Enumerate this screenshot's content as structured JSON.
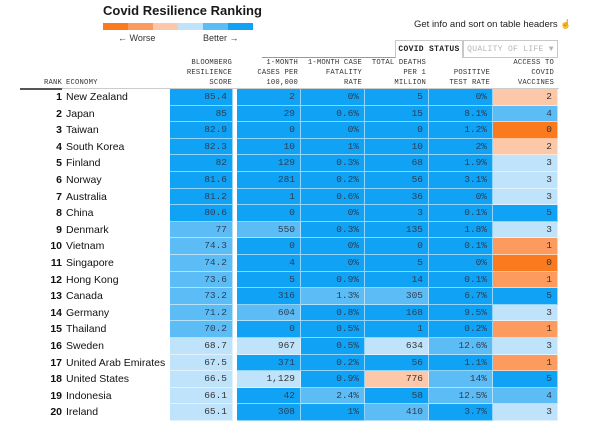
{
  "header": {
    "title": "Covid Resilience Ranking",
    "legend_worse": "← Worse",
    "legend_better": "Better →",
    "scale_colors": [
      "#fc7a1e",
      "#fd9b5e",
      "#fdc8aa",
      "#bfe3fb",
      "#5cbdf6",
      "#10a2f4"
    ],
    "info_text": "Get info and sort on table headers",
    "info_icon": "pointer-hand-icon"
  },
  "tabs": [
    {
      "label": "COVID STATUS",
      "active": true
    },
    {
      "label": "QUALITY OF LIFE ▼",
      "active": false
    }
  ],
  "columns": {
    "rank": "RANK",
    "economy": "ECONOMY",
    "score": [
      "BLOOMBERG",
      "RESILIENCE",
      "SCORE"
    ],
    "cases": [
      "1-MONTH",
      "CASES PER",
      "100,000"
    ],
    "fatality": [
      "1-MONTH CASE",
      "FATALITY",
      "RATE"
    ],
    "deaths": [
      "TOTAL DEATHS",
      "PER 1",
      "MILLION"
    ],
    "positive": [
      "POSITIVE",
      "TEST RATE"
    ],
    "vaccines": [
      "ACCESS TO",
      "COVID",
      "VACCINES"
    ]
  },
  "palette": {
    "b1": "#10a2f4",
    "b2": "#5cbdf6",
    "b3": "#bfe3fb",
    "o1": "#fdc8aa",
    "o2": "#fd9b5e",
    "o3": "#fc7a1e"
  },
  "rows": [
    {
      "rank": "1",
      "economy": "New Zealand",
      "score": "85.4",
      "cases": "2",
      "fatality": "0%",
      "deaths": "5",
      "positive": "0%",
      "vaccines": "2",
      "colors": [
        "b1",
        "b1",
        "b1",
        "b1",
        "b1",
        "o1"
      ]
    },
    {
      "rank": "2",
      "economy": "Japan",
      "score": "85",
      "cases": "29",
      "fatality": "0.6%",
      "deaths": "15",
      "positive": "8.1%",
      "vaccines": "4",
      "colors": [
        "b1",
        "b1",
        "b1",
        "b1",
        "b1",
        "b2"
      ]
    },
    {
      "rank": "3",
      "economy": "Taiwan",
      "score": "82.9",
      "cases": "0",
      "fatality": "0%",
      "deaths": "0",
      "positive": "1.2%",
      "vaccines": "0",
      "colors": [
        "b1",
        "b1",
        "b1",
        "b1",
        "b1",
        "o3"
      ]
    },
    {
      "rank": "4",
      "economy": "South Korea",
      "score": "82.3",
      "cases": "10",
      "fatality": "1%",
      "deaths": "10",
      "positive": "2%",
      "vaccines": "2",
      "colors": [
        "b1",
        "b1",
        "b1",
        "b1",
        "b1",
        "o1"
      ]
    },
    {
      "rank": "5",
      "economy": "Finland",
      "score": "82",
      "cases": "129",
      "fatality": "0.3%",
      "deaths": "68",
      "positive": "1.9%",
      "vaccines": "3",
      "colors": [
        "b1",
        "b1",
        "b1",
        "b1",
        "b1",
        "b3"
      ]
    },
    {
      "rank": "6",
      "economy": "Norway",
      "score": "81.6",
      "cases": "281",
      "fatality": "0.2%",
      "deaths": "56",
      "positive": "3.1%",
      "vaccines": "3",
      "colors": [
        "b1",
        "b1",
        "b1",
        "b1",
        "b1",
        "b3"
      ]
    },
    {
      "rank": "7",
      "economy": "Australia",
      "score": "81.2",
      "cases": "1",
      "fatality": "0.6%",
      "deaths": "36",
      "positive": "0%",
      "vaccines": "3",
      "colors": [
        "b1",
        "b1",
        "b1",
        "b1",
        "b1",
        "b3"
      ]
    },
    {
      "rank": "8",
      "economy": "China",
      "score": "80.6",
      "cases": "0",
      "fatality": "0%",
      "deaths": "3",
      "positive": "0.1%",
      "vaccines": "5",
      "colors": [
        "b1",
        "b1",
        "b1",
        "b1",
        "b1",
        "b1"
      ]
    },
    {
      "rank": "9",
      "economy": "Denmark",
      "score": "77",
      "cases": "550",
      "fatality": "0.3%",
      "deaths": "135",
      "positive": "1.8%",
      "vaccines": "3",
      "colors": [
        "b2",
        "b2",
        "b1",
        "b1",
        "b1",
        "b3"
      ]
    },
    {
      "rank": "10",
      "economy": "Vietnam",
      "score": "74.3",
      "cases": "0",
      "fatality": "0%",
      "deaths": "0",
      "positive": "0.1%",
      "vaccines": "1",
      "colors": [
        "b2",
        "b1",
        "b1",
        "b1",
        "b1",
        "o2"
      ]
    },
    {
      "rank": "11",
      "economy": "Singapore",
      "score": "74.2",
      "cases": "4",
      "fatality": "0%",
      "deaths": "5",
      "positive": "0%",
      "vaccines": "0",
      "colors": [
        "b2",
        "b1",
        "b1",
        "b1",
        "b1",
        "o3"
      ]
    },
    {
      "rank": "12",
      "economy": "Hong Kong",
      "score": "73.6",
      "cases": "5",
      "fatality": "0.9%",
      "deaths": "14",
      "positive": "0.1%",
      "vaccines": "1",
      "colors": [
        "b2",
        "b1",
        "b1",
        "b1",
        "b1",
        "o2"
      ]
    },
    {
      "rank": "13",
      "economy": "Canada",
      "score": "73.2",
      "cases": "316",
      "fatality": "1.3%",
      "deaths": "305",
      "positive": "6.7%",
      "vaccines": "5",
      "colors": [
        "b2",
        "b1",
        "b2",
        "b2",
        "b1",
        "b1"
      ]
    },
    {
      "rank": "14",
      "economy": "Germany",
      "score": "71.2",
      "cases": "604",
      "fatality": "0.8%",
      "deaths": "168",
      "positive": "9.5%",
      "vaccines": "3",
      "colors": [
        "b2",
        "b2",
        "b1",
        "b1",
        "b1",
        "b3"
      ]
    },
    {
      "rank": "15",
      "economy": "Thailand",
      "score": "70.2",
      "cases": "0",
      "fatality": "0.5%",
      "deaths": "1",
      "positive": "0.2%",
      "vaccines": "1",
      "colors": [
        "b2",
        "b1",
        "b1",
        "b1",
        "b1",
        "o2"
      ]
    },
    {
      "rank": "16",
      "economy": "Sweden",
      "score": "68.7",
      "cases": "967",
      "fatality": "0.5%",
      "deaths": "634",
      "positive": "12.6%",
      "vaccines": "3",
      "colors": [
        "b3",
        "b3",
        "b1",
        "b3",
        "b2",
        "b3"
      ]
    },
    {
      "rank": "17",
      "economy": "United Arab Emirates",
      "score": "67.5",
      "cases": "371",
      "fatality": "0.2%",
      "deaths": "56",
      "positive": "1.1%",
      "vaccines": "1",
      "colors": [
        "b3",
        "b1",
        "b1",
        "b1",
        "b1",
        "o2"
      ]
    },
    {
      "rank": "18",
      "economy": "United States",
      "score": "66.5",
      "cases": "1,129",
      "fatality": "0.9%",
      "deaths": "776",
      "positive": "14%",
      "vaccines": "5",
      "colors": [
        "b3",
        "b3",
        "b1",
        "o1",
        "b2",
        "b1"
      ]
    },
    {
      "rank": "19",
      "economy": "Indonesia",
      "score": "66.1",
      "cases": "42",
      "fatality": "2.4%",
      "deaths": "58",
      "positive": "12.5%",
      "vaccines": "4",
      "colors": [
        "b3",
        "b1",
        "b2",
        "b1",
        "b2",
        "b2"
      ]
    },
    {
      "rank": "20",
      "economy": "Ireland",
      "score": "65.1",
      "cases": "308",
      "fatality": "1%",
      "deaths": "410",
      "positive": "3.7%",
      "vaccines": "3",
      "colors": [
        "b3",
        "b1",
        "b1",
        "b2",
        "b1",
        "b3"
      ]
    }
  ]
}
